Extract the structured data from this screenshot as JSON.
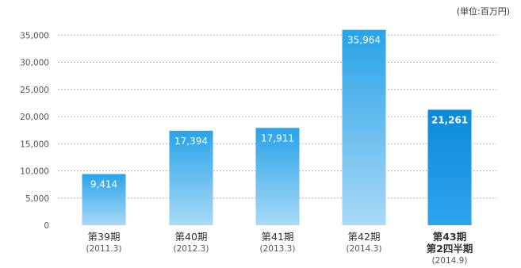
{
  "unit_label": "(単位:百万円)",
  "colors": {
    "bar_top": "#29A3E8",
    "bar_bottom": "#A8D9F7",
    "highlight_top": "#0C8ADB",
    "highlight_bottom": "#2EA4EC",
    "grid": "#9AA3A9",
    "axis_text": "#555555",
    "label_text": "#ffffff"
  },
  "chart_data": {
    "type": "bar",
    "title": "",
    "xlabel": "",
    "ylabel": "",
    "ylim": [
      0,
      40000
    ],
    "grid": true,
    "y_tick_labels": [
      "0",
      "5,000",
      "10,000",
      "15,000",
      "20,000",
      "25,000",
      "30,000",
      "35,000"
    ],
    "categories": [
      {
        "label": "第39期",
        "sub": "(2011.3)"
      },
      {
        "label": "第40期",
        "sub": "(2012.3)"
      },
      {
        "label": "第41期",
        "sub": "(2013.3)"
      },
      {
        "label": "第42期",
        "sub": "(2014.3)"
      },
      {
        "label": "第43期",
        "label2": "第2四半期",
        "sub": "(2014.9)"
      }
    ],
    "values": [
      9414,
      17394,
      17911,
      35964,
      21261
    ],
    "value_labels": [
      "9,414",
      "17,394",
      "17,911",
      "35,964",
      "21,261"
    ],
    "highlight_index": 4
  }
}
